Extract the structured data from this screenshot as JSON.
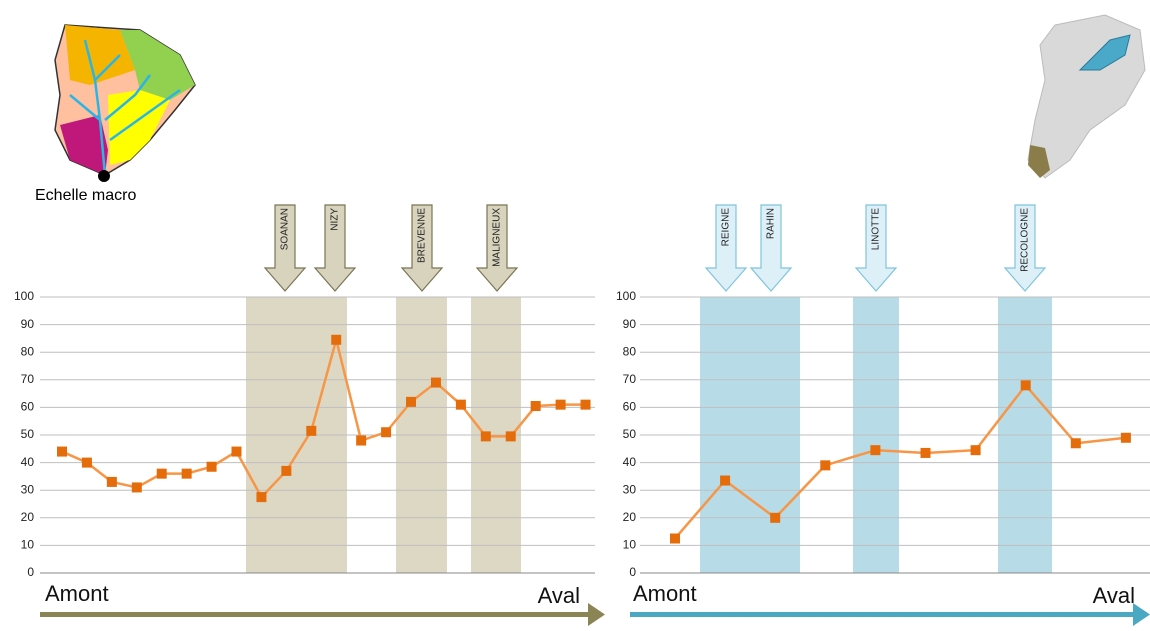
{
  "caption": "Echelle macro",
  "chart_data": [
    {
      "type": "line",
      "ylim": [
        0,
        100
      ],
      "yticks": [
        0,
        10,
        20,
        30,
        40,
        50,
        60,
        70,
        80,
        90,
        100
      ],
      "grid": true,
      "color": "#f79646",
      "marker_color": "#e46c0a",
      "values": [
        44,
        40,
        33,
        31,
        36,
        36,
        38.5,
        44,
        27.5,
        37,
        51.5,
        84.5,
        48,
        51,
        62,
        69,
        61,
        49.5,
        49.5,
        60.5,
        61,
        61
      ],
      "annotations": [
        "SOANAN",
        "NIZY",
        "BREVENNE",
        "MALIGNEUX"
      ],
      "start_label": "Amont",
      "end_label": "Aval"
    },
    {
      "type": "line",
      "ylim": [
        0,
        100
      ],
      "yticks": [
        0,
        10,
        20,
        30,
        40,
        50,
        60,
        70,
        80,
        90,
        100
      ],
      "grid": true,
      "color": "#f79646",
      "marker_color": "#e46c0a",
      "values": [
        12.5,
        33.5,
        20,
        39,
        44.5,
        43.5,
        44.5,
        68,
        47,
        49
      ],
      "annotations": [
        "REIGNE",
        "RAHIN",
        "LINOTTE",
        "RECOLOGNE"
      ],
      "start_label": "Amont",
      "end_label": "Aval"
    }
  ]
}
